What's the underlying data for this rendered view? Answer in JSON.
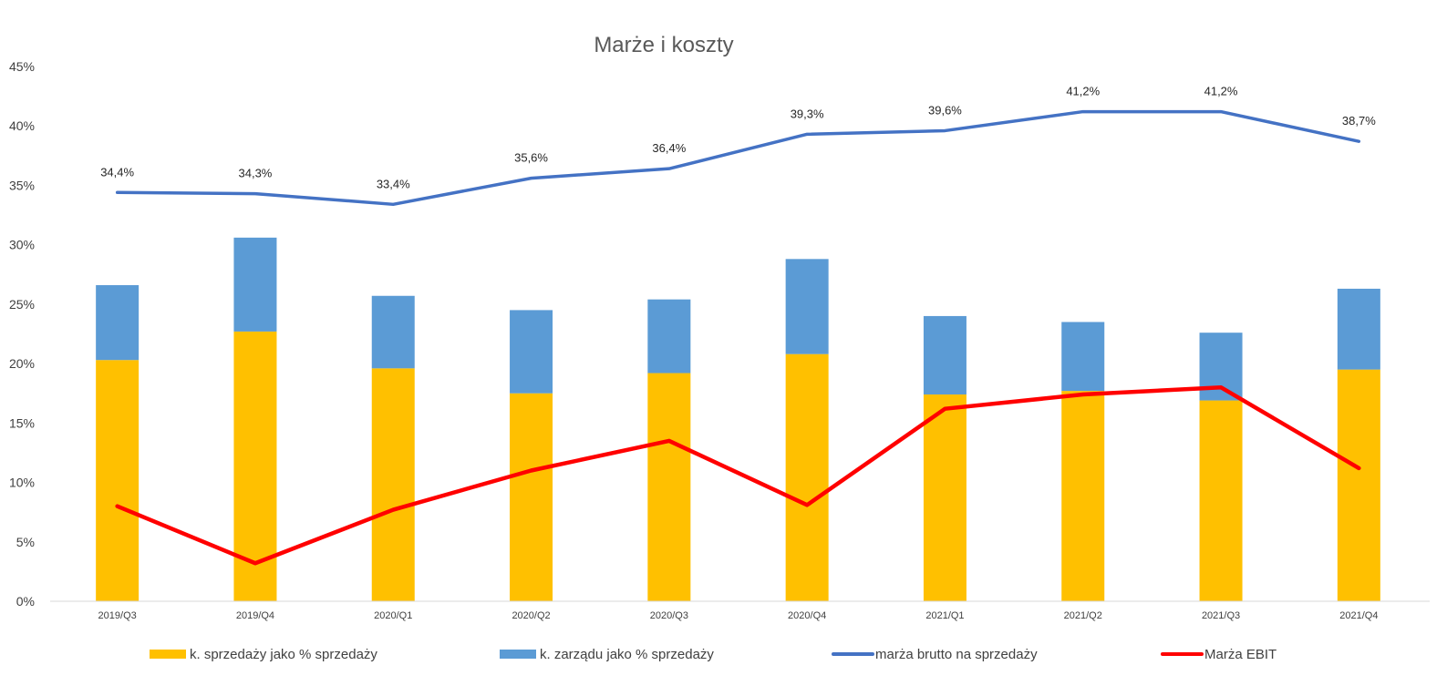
{
  "chart_data": {
    "type": "bar",
    "title": "Marże i koszty",
    "categories": [
      "2019/Q3",
      "2019/Q4",
      "2020/Q1",
      "2020/Q2",
      "2020/Q3",
      "2020/Q4",
      "2021/Q1",
      "2021/Q2",
      "2021/Q3",
      "2021/Q4"
    ],
    "ylim": [
      0,
      45
    ],
    "y_ticks": [
      "0%",
      "5%",
      "10%",
      "15%",
      "20%",
      "25%",
      "30%",
      "35%",
      "40%",
      "45%"
    ],
    "grid": false,
    "legend_position": "bottom",
    "series": [
      {
        "name": "k. sprzedaży jako % sprzedaży",
        "kind": "stacked-bar",
        "color": "#FFC000",
        "values": [
          20.3,
          22.7,
          19.6,
          17.5,
          19.2,
          20.8,
          17.4,
          17.7,
          16.9,
          19.5
        ]
      },
      {
        "name": "k. zarządu jako % sprzedaży",
        "kind": "stacked-bar",
        "color": "#5B9BD5",
        "values": [
          6.3,
          7.9,
          6.1,
          7.0,
          6.2,
          8.0,
          6.6,
          5.8,
          5.7,
          6.8
        ]
      },
      {
        "name": "marża brutto na sprzedaży",
        "kind": "line",
        "color": "#4472C4",
        "values": [
          34.4,
          34.3,
          33.4,
          35.6,
          36.4,
          39.3,
          39.6,
          41.2,
          41.2,
          38.7
        ],
        "labels": [
          "34,4%",
          "34,3%",
          "33,4%",
          "35,6%",
          "36,4%",
          "39,3%",
          "39,6%",
          "41,2%",
          "41,2%",
          "38,7%"
        ]
      },
      {
        "name": "Marża EBIT",
        "kind": "line",
        "color": "#FF0000",
        "values": [
          8.0,
          3.2,
          7.7,
          11.0,
          13.5,
          8.1,
          16.2,
          17.4,
          18.0,
          11.2
        ]
      }
    ]
  }
}
